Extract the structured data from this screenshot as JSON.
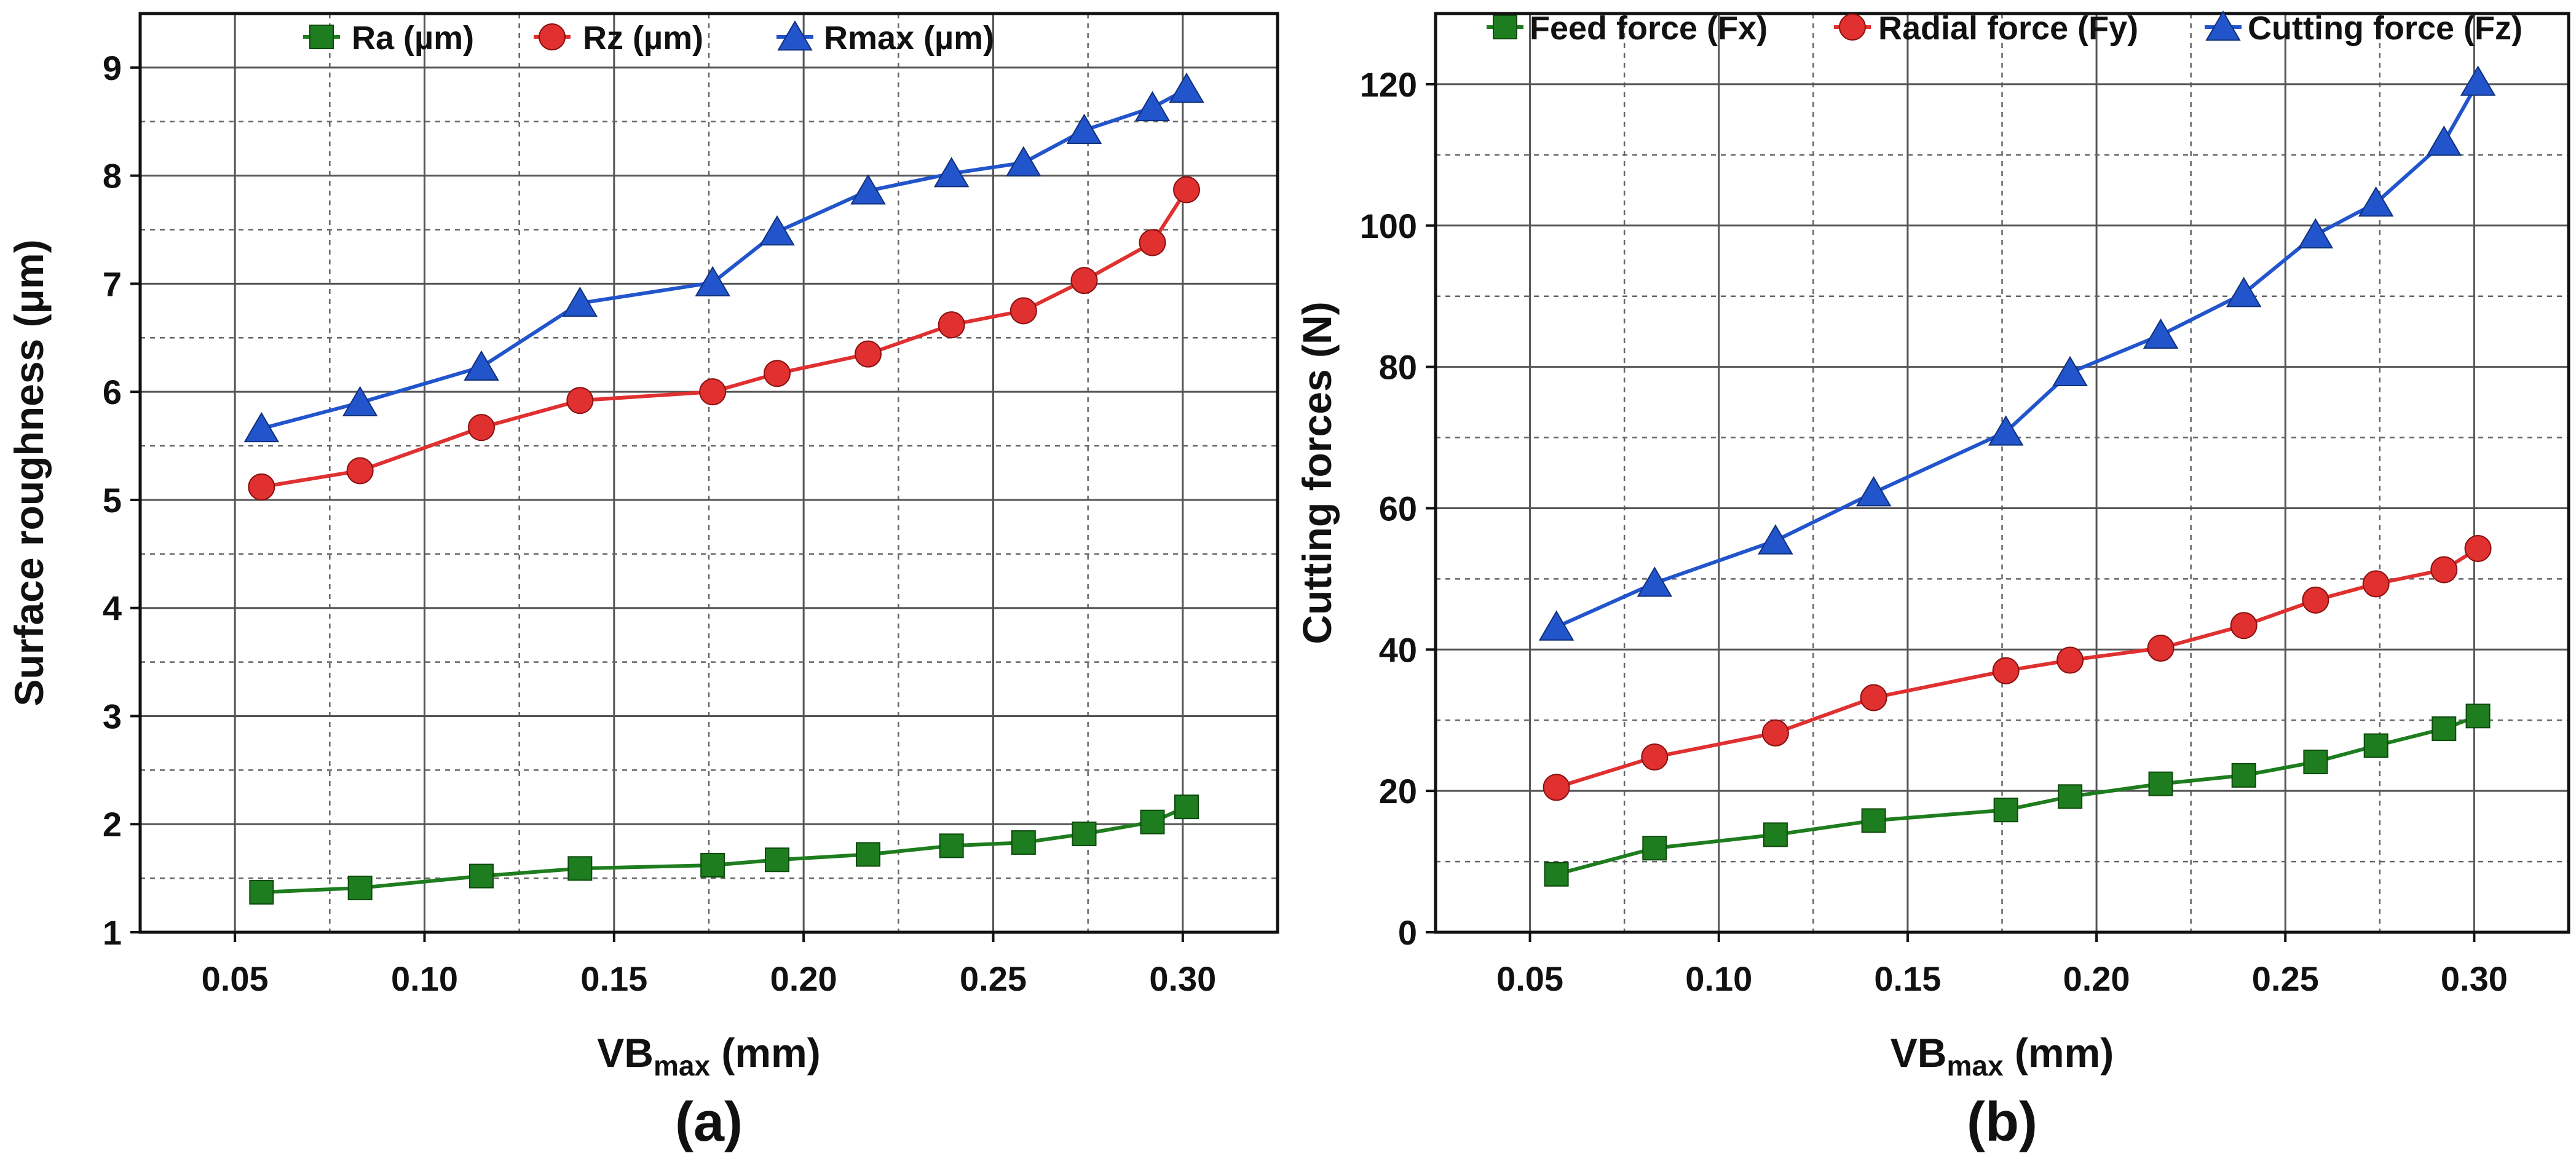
{
  "chart_data": [
    {
      "type": "line",
      "panel_label": "(a)",
      "xlabel_main": "VB",
      "xlabel_sub": "max",
      "xlabel_unit": " (mm)",
      "ylabel": "Surface roughness (μm)",
      "xlim": [
        0.025,
        0.325
      ],
      "ylim": [
        1,
        9.5
      ],
      "xticks": [
        0.05,
        0.1,
        0.15,
        0.2,
        0.25,
        0.3
      ],
      "xtick_labels": [
        "0.05",
        "0.10",
        "0.15",
        "0.20",
        "0.25",
        "0.30"
      ],
      "xgrid": [
        0.05,
        0.075,
        0.1,
        0.125,
        0.15,
        0.175,
        0.2,
        0.225,
        0.25,
        0.275,
        0.3
      ],
      "yticks": [
        1,
        2,
        3,
        4,
        5,
        6,
        7,
        8,
        9
      ],
      "ytick_labels": [
        "1",
        "2",
        "3",
        "4",
        "5",
        "6",
        "7",
        "8",
        "9"
      ],
      "ygrid": [
        1.5,
        2,
        2.5,
        3,
        3.5,
        4,
        4.5,
        5,
        5.5,
        6,
        6.5,
        7,
        7.5,
        8,
        8.5,
        9
      ],
      "legend_position": "top",
      "x": [
        0.057,
        0.083,
        0.115,
        0.141,
        0.176,
        0.193,
        0.217,
        0.239,
        0.258,
        0.274,
        0.292,
        0.301
      ],
      "series": [
        {
          "name": "Ra (µm)",
          "marker": "square",
          "color": "#1e7d1e",
          "values": [
            1.37,
            1.41,
            1.52,
            1.59,
            1.62,
            1.67,
            1.72,
            1.8,
            1.83,
            1.91,
            2.02,
            2.16
          ]
        },
        {
          "name": "Rz (µm)",
          "marker": "circle",
          "color": "#e03030",
          "values": [
            5.12,
            5.27,
            5.67,
            5.92,
            6.0,
            6.17,
            6.35,
            6.62,
            6.75,
            7.03,
            7.38,
            7.87
          ]
        },
        {
          "name": "Rmax (µm)",
          "marker": "triangle",
          "color": "#2255cc",
          "values": [
            5.66,
            5.9,
            6.23,
            6.82,
            7.01,
            7.48,
            7.86,
            8.02,
            8.12,
            8.42,
            8.63,
            8.8
          ]
        }
      ]
    },
    {
      "type": "line",
      "panel_label": "(b)",
      "xlabel_main": "VB",
      "xlabel_sub": "max",
      "xlabel_unit": " (mm)",
      "ylabel": "Cutting forces (N)",
      "xlim": [
        0.025,
        0.325
      ],
      "ylim": [
        0,
        130
      ],
      "xticks": [
        0.05,
        0.1,
        0.15,
        0.2,
        0.25,
        0.3
      ],
      "xtick_labels": [
        "0.05",
        "0.10",
        "0.15",
        "0.20",
        "0.25",
        "0.30"
      ],
      "xgrid": [
        0.05,
        0.075,
        0.1,
        0.125,
        0.15,
        0.175,
        0.2,
        0.225,
        0.25,
        0.275,
        0.3
      ],
      "yticks": [
        0,
        20,
        40,
        60,
        80,
        100,
        120
      ],
      "ytick_labels": [
        "0",
        "20",
        "40",
        "60",
        "80",
        "100",
        "120"
      ],
      "ygrid": [
        10,
        20,
        30,
        40,
        50,
        60,
        70,
        80,
        90,
        100,
        110,
        120
      ],
      "legend_position": "top",
      "x": [
        0.057,
        0.083,
        0.115,
        0.141,
        0.176,
        0.193,
        0.217,
        0.239,
        0.258,
        0.274,
        0.292,
        0.301
      ],
      "series": [
        {
          "name": "Feed force (Fx)",
          "marker": "square",
          "color": "#1e7d1e",
          "values": [
            8.2,
            11.9,
            13.8,
            15.8,
            17.3,
            19.2,
            21.0,
            22.2,
            24.1,
            26.4,
            28.8,
            30.6
          ]
        },
        {
          "name": "Radial force (Fy)",
          "marker": "circle",
          "color": "#e03030",
          "values": [
            20.5,
            24.8,
            28.2,
            33.2,
            37.0,
            38.5,
            40.2,
            43.4,
            47.0,
            49.3,
            51.3,
            54.3
          ]
        },
        {
          "name": "Cutting force (Fz)",
          "marker": "triangle",
          "color": "#2255cc",
          "values": [
            43.2,
            49.4,
            55.4,
            62.2,
            70.8,
            79.2,
            84.5,
            90.4,
            98.7,
            103.2,
            111.8,
            120.3
          ]
        }
      ]
    }
  ]
}
